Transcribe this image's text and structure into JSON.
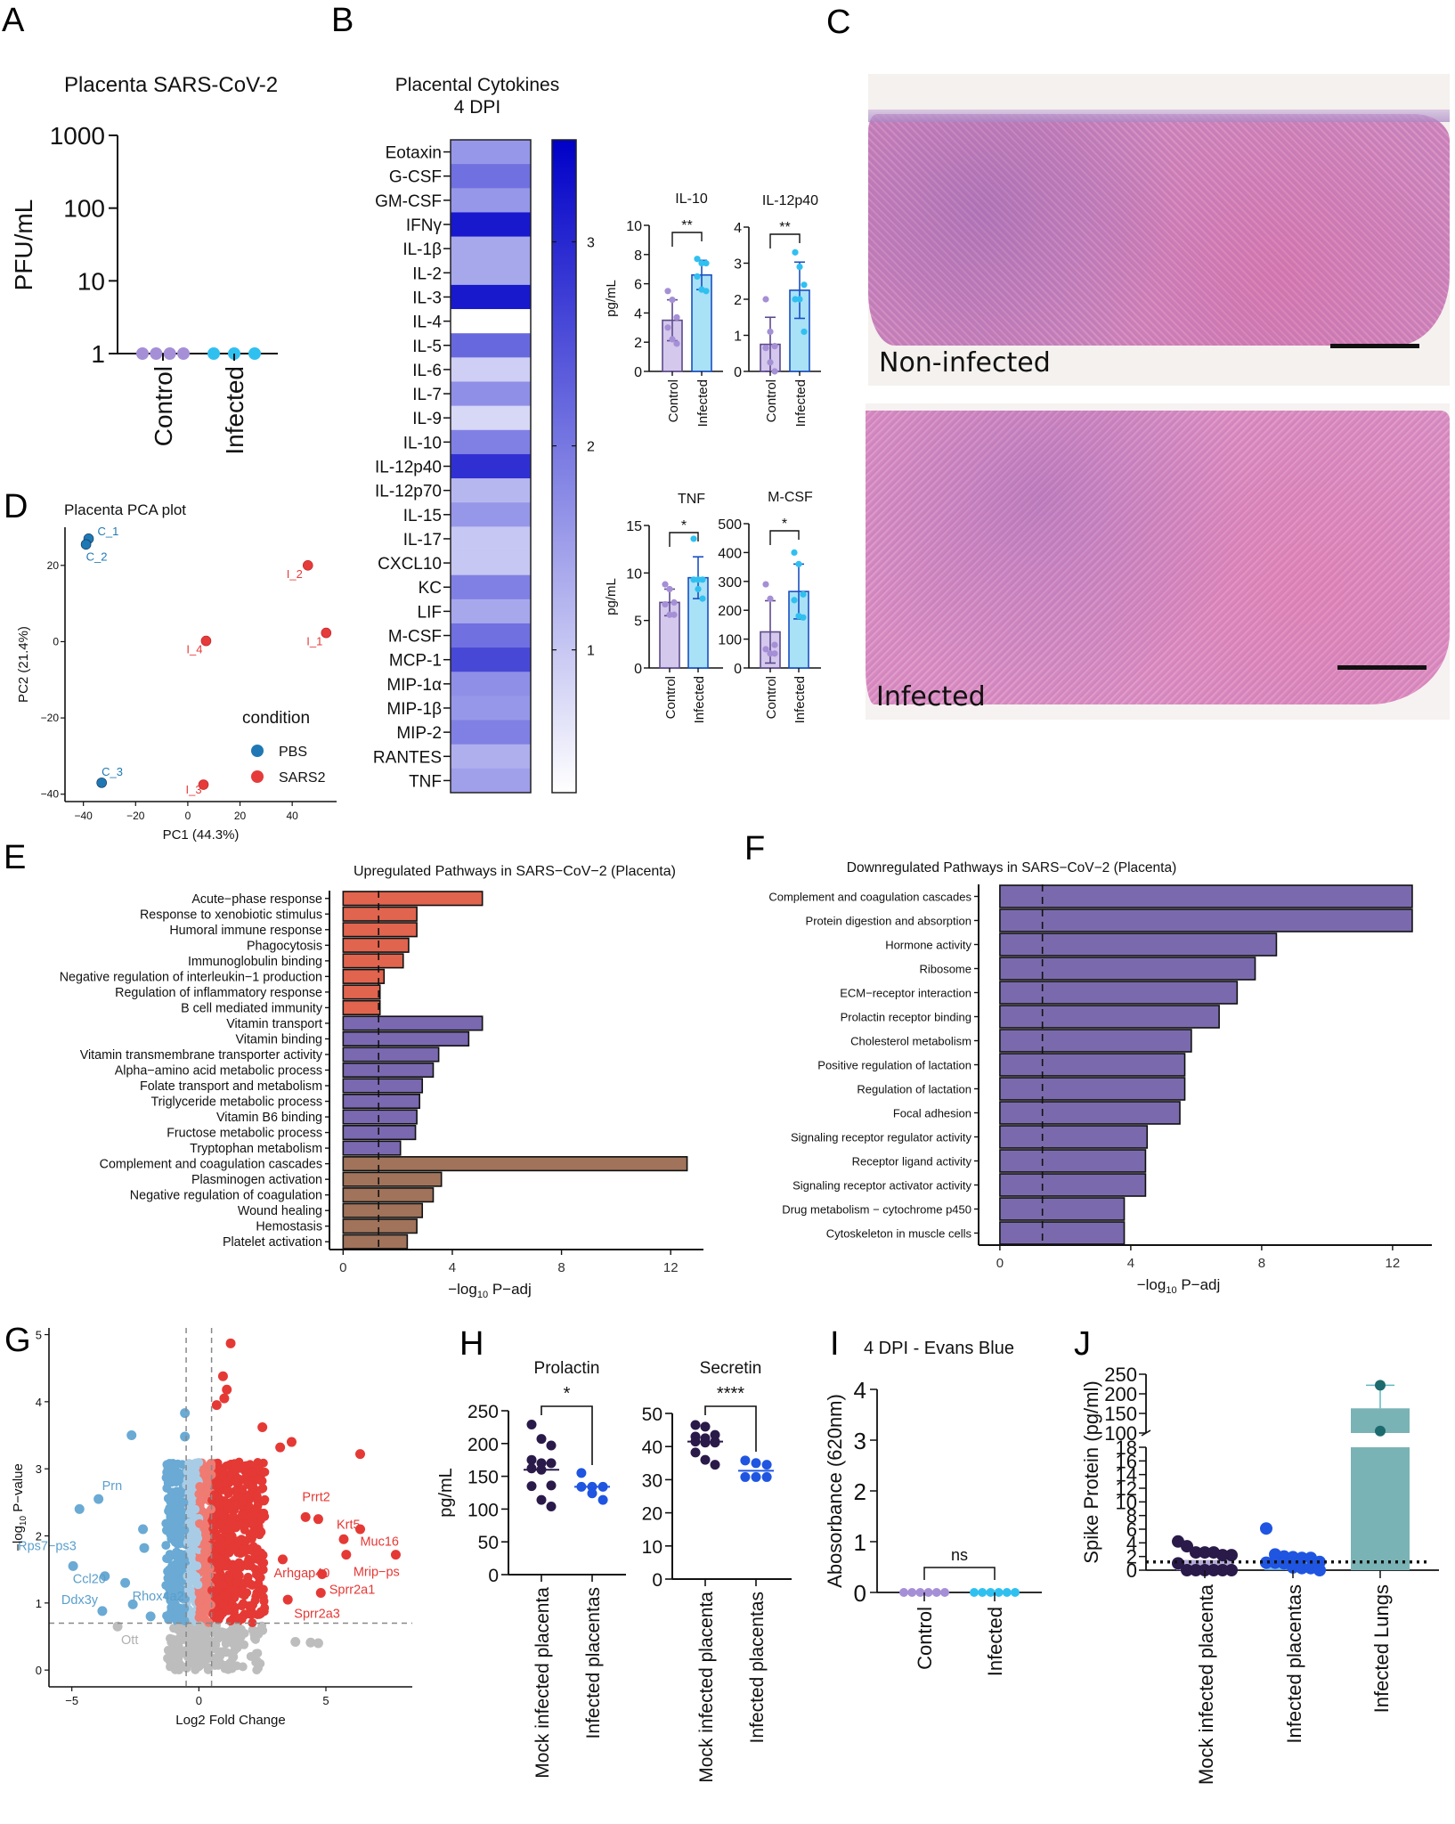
{
  "panels": {
    "A": {
      "letter": "A"
    },
    "B": {
      "letter": "B"
    },
    "C": {
      "letter": "C",
      "images": [
        {
          "label": "Non-infected"
        },
        {
          "label": "Infected"
        }
      ]
    },
    "D": {
      "letter": "D"
    },
    "E": {
      "letter": "E"
    },
    "F": {
      "letter": "F"
    },
    "G": {
      "letter": "G"
    },
    "H": {
      "letter": "H"
    },
    "I": {
      "letter": "I"
    },
    "J": {
      "letter": "J"
    }
  },
  "colors": {
    "control_purple": "#a58fd6",
    "control_fill": "#d4c8ec",
    "infected_cyan": "#2fc0f0",
    "infected_fill": "#a9e1f7",
    "heat_high": "#0000c8",
    "pca_pbs": "#1f78b4",
    "pca_sars2": "#e63b3b",
    "up_red": "#e0644e",
    "up_purple": "#7a68b0",
    "up_brown": "#a0735a",
    "down_purple": "#7a6aad",
    "volcano_blue": "#6aaad4",
    "volcano_lightblue": "#a9cce6",
    "volcano_red": "#e53935",
    "volcano_lightred": "#ef7b73",
    "volcano_grey": "#bdbdbd",
    "mock_dark": "#2a1a4a",
    "infected_blue": "#1f55e0",
    "lung_teal": "#7ab3b5",
    "lung_dot": "#1d6b6e"
  },
  "chart_data": [
    {
      "id": "A",
      "type": "scatter",
      "title": "Placenta SARS-CoV-2",
      "ylabel": "PFU/mL",
      "yscale": "log",
      "ylim": [
        1,
        1000
      ],
      "yticks": [
        "1",
        "10",
        "100",
        "1000"
      ],
      "categories": [
        "Control",
        "Infected"
      ],
      "series": [
        {
          "name": "Control",
          "values": [
            1,
            1,
            1,
            1
          ]
        },
        {
          "name": "Infected",
          "values": [
            1,
            1,
            1
          ]
        }
      ]
    },
    {
      "id": "B-heatmap",
      "type": "heatmap",
      "title": "Placental Cytokines",
      "subtitle": "4 DPI",
      "rows": [
        "Eotaxin",
        "G-CSF",
        "GM-CSF",
        "IFNγ",
        "IL-1β",
        "IL-2",
        "IL-3",
        "IL-4",
        "IL-5",
        "IL-6",
        "IL-7",
        "IL-9",
        "IL-10",
        "IL-12p40",
        "IL-12p70",
        "IL-15",
        "IL-17",
        "CXCL10",
        "KC",
        "LIF",
        "M-CSF",
        "MCP-1",
        "MIP-1α",
        "MIP-1β",
        "MIP-2",
        "RANTES",
        "TNF"
      ],
      "values": [
        1.6,
        2.1,
        1.6,
        3.2,
        1.4,
        1.4,
        3.2,
        0.0,
        2.2,
        0.9,
        1.7,
        0.8,
        1.9,
        2.9,
        1.2,
        1.6,
        1.0,
        1.0,
        1.9,
        1.4,
        2.1,
        2.6,
        1.7,
        1.6,
        1.9,
        1.3,
        1.5
      ],
      "colorbar": {
        "min": 0.3,
        "max": 3.5,
        "ticks": [
          "1",
          "2",
          "3"
        ]
      }
    },
    {
      "id": "B-IL10",
      "type": "bar",
      "title": "IL-10",
      "ylabel": "pg/mL",
      "ylim": [
        0,
        10
      ],
      "yticks": [
        "0",
        "2",
        "4",
        "6",
        "8",
        "10"
      ],
      "categories": [
        "Control",
        "Infected"
      ],
      "values": [
        3.5,
        6.6
      ],
      "sd": [
        1.4,
        1.0
      ],
      "significance": "**",
      "points": [
        [
          5.5,
          4.9,
          3.7,
          3.0,
          2.2,
          1.9
        ],
        [
          7.7,
          7.4,
          7.4,
          6.5,
          5.6,
          5.5
        ]
      ]
    },
    {
      "id": "B-IL12p40",
      "type": "bar",
      "title": "IL-12p40",
      "ylabel": "",
      "ylim": [
        0,
        4
      ],
      "yticks": [
        "0",
        "1",
        "2",
        "3",
        "4"
      ],
      "categories": [
        "Control",
        "Infected"
      ],
      "values": [
        0.75,
        2.25
      ],
      "sd": [
        0.75,
        0.78
      ],
      "significance": "**",
      "points": [
        [
          2.0,
          1.1,
          0.7,
          0.65,
          0.25,
          0.0
        ],
        [
          3.3,
          2.9,
          2.4,
          2.0,
          2.0,
          1.1
        ]
      ]
    },
    {
      "id": "B-TNF",
      "type": "bar",
      "title": "TNF",
      "ylabel": "pg/mL",
      "ylim": [
        0,
        15
      ],
      "yticks": [
        "0",
        "5",
        "10",
        "15"
      ],
      "categories": [
        "Control",
        "Infected"
      ],
      "values": [
        6.9,
        9.5
      ],
      "sd": [
        1.4,
        2.2
      ],
      "significance": "*",
      "points": [
        [
          8.8,
          8.3,
          6.9,
          6.7,
          5.6,
          5.6
        ],
        [
          13.6,
          9.3,
          9.3,
          9.3,
          8.3,
          7.3
        ]
      ]
    },
    {
      "id": "B-MCSF",
      "type": "bar",
      "title": "M-CSF",
      "ylabel": "",
      "ylim": [
        0,
        500
      ],
      "yticks": [
        "0",
        "100",
        "200",
        "300",
        "400",
        "500"
      ],
      "categories": [
        "Control",
        "Infected"
      ],
      "values": [
        125,
        265
      ],
      "sd": [
        108,
        95
      ],
      "significance": "*",
      "points": [
        [
          290,
          240,
          80,
          65,
          50,
          50
        ],
        [
          400,
          360,
          255,
          235,
          180,
          175
        ]
      ]
    },
    {
      "id": "D",
      "type": "scatter",
      "title": "Placenta PCA plot",
      "xlabel": "PC1 (44.3%)",
      "ylabel": "PC2 (21.4%)",
      "xlim": [
        -45,
        57
      ],
      "ylim": [
        -41,
        30
      ],
      "xticks": [
        "-40",
        "-20",
        "0",
        "20",
        "40"
      ],
      "yticks": [
        "-40",
        "-20",
        "0",
        "20"
      ],
      "legend": {
        "title": "condition",
        "position": "bottom-right",
        "entries": [
          "PBS",
          "SARS2"
        ]
      },
      "points": [
        {
          "label": "C_1",
          "x": -38,
          "y": 27,
          "group": "PBS"
        },
        {
          "label": "C_2",
          "x": -39,
          "y": 25.5,
          "group": "PBS"
        },
        {
          "label": "C_3",
          "x": -33,
          "y": -37,
          "group": "PBS"
        },
        {
          "label": "I_1",
          "x": 53,
          "y": 2.3,
          "group": "SARS2"
        },
        {
          "label": "I_2",
          "x": 46,
          "y": 20,
          "group": "SARS2"
        },
        {
          "label": "I_3",
          "x": 6,
          "y": -37.5,
          "group": "SARS2"
        },
        {
          "label": "I_4",
          "x": 7,
          "y": 0.2,
          "group": "SARS2"
        }
      ]
    },
    {
      "id": "E",
      "type": "bar",
      "orientation": "horizontal",
      "title": "Upregulated Pathways in SARS−CoV−2 (Placenta)",
      "xlabel": "−log10 P−adj",
      "xlim": [
        -0.5,
        13.2
      ],
      "xticks": [
        "0",
        "4",
        "8",
        "12"
      ],
      "threshold": 1.3,
      "categories": [
        "Acute−phase response",
        "Response to xenobiotic stimulus",
        "Humoral immune response",
        "Phagocytosis",
        "Immunoglobulin binding",
        "Negative regulation of interleukin−1 production",
        "Regulation of inflammatory response",
        "B cell mediated immunity",
        "Vitamin transport",
        "Vitamin binding",
        "Vitamin transmembrane transporter activity",
        "Alpha−amino acid metabolic process",
        "Folate transport and metabolism",
        "Triglyceride metabolic process",
        "Vitamin B6 binding",
        "Fructose metabolic process",
        "Tryptophan metabolism",
        "Complement and coagulation cascades",
        "Plasminogen activation",
        "Negative regulation of coagulation",
        "Wound healing",
        "Hemostasis",
        "Platelet activation"
      ],
      "values": [
        5.1,
        2.7,
        2.7,
        2.4,
        2.2,
        1.5,
        1.35,
        1.35,
        5.1,
        4.6,
        3.5,
        3.3,
        2.9,
        2.8,
        2.7,
        2.65,
        2.1,
        12.6,
        3.6,
        3.3,
        2.9,
        2.7,
        2.35
      ],
      "groups": [
        "immune",
        "immune",
        "immune",
        "immune",
        "immune",
        "immune",
        "immune",
        "immune",
        "vitamin",
        "vitamin",
        "vitamin",
        "vitamin",
        "vitamin",
        "vitamin",
        "vitamin",
        "vitamin",
        "vitamin",
        "coag",
        "coag",
        "coag",
        "coag",
        "coag",
        "coag"
      ]
    },
    {
      "id": "F",
      "type": "bar",
      "orientation": "horizontal",
      "title": "Downregulated Pathways in SARS−CoV−2 (Placenta)",
      "xlabel": "−log10 P−adj",
      "xlim": [
        -0.65,
        13.2
      ],
      "xticks": [
        "0",
        "4",
        "8",
        "12"
      ],
      "threshold": 1.3,
      "categories": [
        "Complement and coagulation cascades",
        "Protein digestion and absorption",
        "Hormone activity",
        "Ribosome",
        "ECM−receptor interaction",
        "Prolactin receptor binding",
        "Cholesterol metabolism",
        "Positive regulation of lactation",
        "Regulation of lactation",
        "Focal adhesion",
        "Signaling receptor regulator activity",
        "Receptor ligand activity",
        "Signaling receptor activator activity",
        "Drug metabolism − cytochrome p450",
        "Cytoskeleton in muscle cells"
      ],
      "values": [
        12.6,
        12.6,
        8.45,
        7.8,
        7.25,
        6.7,
        5.85,
        5.65,
        5.65,
        5.5,
        4.5,
        4.45,
        4.45,
        3.8,
        3.8
      ]
    },
    {
      "id": "G",
      "type": "scatter",
      "title": "",
      "xlabel": "Log2 Fold Change",
      "ylabel": "−log10 P−value",
      "xlim": [
        -5.9,
        8.4
      ],
      "ylim": [
        -0.25,
        5.1
      ],
      "xticks": [
        "-5",
        "0",
        "5"
      ],
      "yticks": [
        "0",
        "1",
        "2",
        "3",
        "4",
        "5"
      ],
      "thresholds": {
        "fc": [
          -0.5,
          0.5
        ],
        "p": 0.7
      },
      "labels": [
        {
          "text": "Prn",
          "x": -3.95,
          "y": 2.55,
          "side": "down"
        },
        {
          "text": "Rps7−ps3",
          "x": -4.95,
          "y": 1.55,
          "side": "down"
        },
        {
          "text": "Ccl20",
          "x": -3.7,
          "y": 1.4,
          "side": "down"
        },
        {
          "text": "Ddx3y",
          "x": -3.8,
          "y": 0.88,
          "side": "down"
        },
        {
          "text": "Rhox4a2",
          "x": -2.9,
          "y": 1.3,
          "side": "down"
        },
        {
          "text": "Ott",
          "x": -3.2,
          "y": 0.65,
          "side": "ns"
        },
        {
          "text": "Prrt2",
          "x": 4.7,
          "y": 2.25,
          "side": "up"
        },
        {
          "text": "Krt5",
          "x": 5.7,
          "y": 1.95,
          "side": "up"
        },
        {
          "text": "Muc16",
          "x": 7.75,
          "y": 1.72,
          "side": "up"
        },
        {
          "text": "Mrip−ps",
          "x": 5.8,
          "y": 1.72,
          "side": "up"
        },
        {
          "text": "Arhgap40",
          "x": 3.3,
          "y": 1.65,
          "side": "up"
        },
        {
          "text": "Sprr2a1",
          "x": 4.85,
          "y": 1.43,
          "side": "up"
        },
        {
          "text": "Sprr2a3",
          "x": 4.8,
          "y": 1.15,
          "side": "up"
        }
      ],
      "highlight_points": [
        {
          "x": 1.25,
          "y": 4.87,
          "side": "up"
        },
        {
          "x": 0.95,
          "y": 4.38,
          "side": "up"
        },
        {
          "x": 1.1,
          "y": 4.18,
          "side": "up"
        },
        {
          "x": 1.0,
          "y": 4.05,
          "side": "up"
        },
        {
          "x": 0.7,
          "y": 3.95,
          "side": "up"
        },
        {
          "x": 6.35,
          "y": 3.22,
          "side": "up"
        },
        {
          "x": 3.65,
          "y": 3.4,
          "side": "up"
        },
        {
          "x": 2.5,
          "y": 3.62,
          "side": "up"
        },
        {
          "x": 3.2,
          "y": 3.32,
          "side": "up"
        },
        {
          "x": 6.35,
          "y": 2.1,
          "side": "up"
        },
        {
          "x": 4.2,
          "y": 2.28,
          "side": "up"
        },
        {
          "x": 3.5,
          "y": 1.05,
          "side": "up"
        },
        {
          "x": -2.65,
          "y": 3.5,
          "side": "down"
        },
        {
          "x": -4.7,
          "y": 2.4,
          "side": "down"
        },
        {
          "x": -2.2,
          "y": 2.1,
          "side": "down"
        },
        {
          "x": -2.15,
          "y": 1.82,
          "side": "down"
        },
        {
          "x": -0.55,
          "y": 3.83,
          "side": "down"
        },
        {
          "x": -0.55,
          "y": 3.48,
          "side": "down"
        },
        {
          "x": -1.9,
          "y": 0.8,
          "side": "down"
        },
        {
          "x": -2.6,
          "y": 0.98,
          "side": "down"
        },
        {
          "x": 4.4,
          "y": 0.41,
          "side": "ns"
        },
        {
          "x": 4.7,
          "y": 0.4,
          "side": "ns"
        },
        {
          "x": 3.8,
          "y": 0.42,
          "side": "ns"
        }
      ]
    },
    {
      "id": "H-Prolactin",
      "type": "scatter",
      "title": "Prolactin",
      "ylabel": "pg/mL",
      "ylim": [
        0,
        250
      ],
      "yticks": [
        "0",
        "50",
        "100",
        "150",
        "200",
        "250"
      ],
      "categories": [
        "Mock infected placenta",
        "Infected placentas"
      ],
      "medians": [
        160,
        134
      ],
      "significance": "*",
      "points": [
        [
          229,
          207,
          197,
          175,
          170,
          170,
          162,
          160,
          136,
          135,
          114,
          104
        ],
        [
          155,
          134,
          134,
          134,
          124,
          114
        ]
      ]
    },
    {
      "id": "H-Secretin",
      "type": "scatter",
      "title": "Secretin",
      "ylabel": "",
      "ylim": [
        0,
        50
      ],
      "yticks": [
        "0",
        "10",
        "20",
        "30",
        "40",
        "50"
      ],
      "categories": [
        "Mock infected placenta",
        "Infected placentas"
      ],
      "medians": [
        41.5,
        32.7
      ],
      "significance": "****",
      "points": [
        [
          46.5,
          46,
          43.5,
          43,
          42.5,
          41.5,
          41.5,
          41.2,
          41.2,
          38.2,
          36,
          34.5
        ],
        [
          35.8,
          35,
          34.5,
          30.8,
          30.8,
          30.8
        ]
      ]
    },
    {
      "id": "I",
      "type": "scatter",
      "title": "4 DPI - Evans Blue",
      "ylabel": "Abosorbance (620nm)",
      "ylim": [
        0,
        4
      ],
      "yticks": [
        "0",
        "1",
        "2",
        "3",
        "4"
      ],
      "categories": [
        "Control",
        "Infected"
      ],
      "significance": "ns",
      "points": [
        [
          0,
          0,
          0,
          0,
          0,
          0
        ],
        [
          0,
          0,
          0,
          0,
          0,
          0
        ]
      ]
    },
    {
      "id": "J",
      "type": "bar",
      "title": "",
      "ylabel": "Spike Protein (pg/ml)",
      "ylim_lower": [
        0,
        18
      ],
      "ylim_upper": [
        100,
        250
      ],
      "yticks_lower": [
        "0",
        "2",
        "4",
        "6",
        "8",
        "10",
        "12",
        "14",
        "16",
        "18"
      ],
      "yticks_upper": [
        "100",
        "150",
        "200",
        "250"
      ],
      "detection_limit": 1.2,
      "categories": [
        "Mock infected placenta",
        "Infected placentas",
        "Infected Lungs"
      ],
      "values": [
        1.5,
        1.7,
        163
      ],
      "points": [
        [
          4.2,
          3.5,
          2.6,
          2.6,
          2.6,
          2.2,
          2.2,
          1.0,
          0,
          0,
          0,
          0,
          0,
          0
        ],
        [
          6.1,
          2.3,
          2.0,
          1.9,
          1.8,
          1.8,
          1.2,
          1.1,
          1.1,
          1.0,
          0.4,
          0.3,
          0.3,
          0.0
        ],
        [
          222,
          105
        ]
      ]
    }
  ]
}
